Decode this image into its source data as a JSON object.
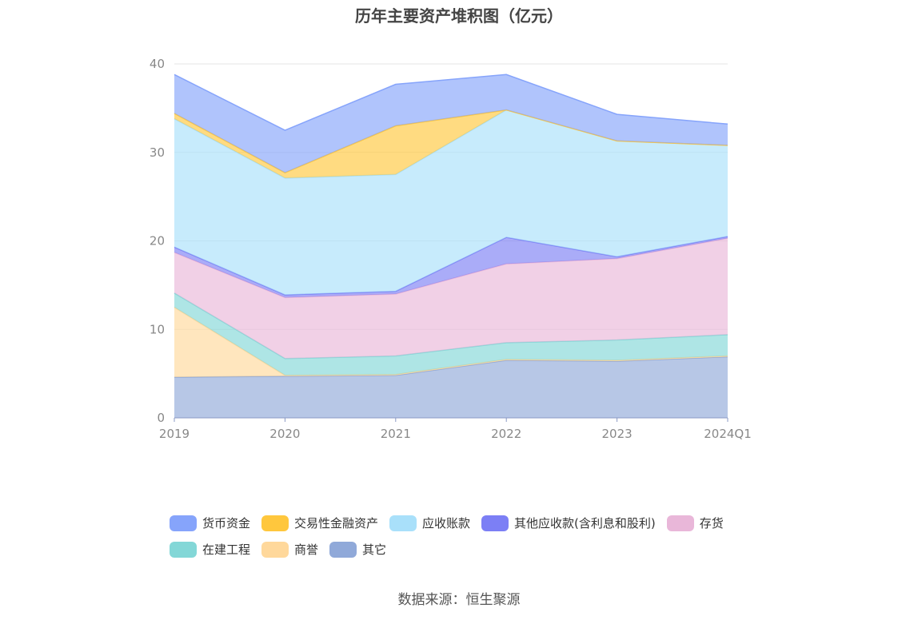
{
  "chart_data": {
    "type": "area",
    "stacked": true,
    "title": "历年主要资产堆积图（亿元）",
    "categories": [
      "2019",
      "2020",
      "2021",
      "2022",
      "2023",
      "2024Q1"
    ],
    "ylim": [
      0,
      40
    ],
    "yticks": [
      "0",
      "10",
      "20",
      "30",
      "40"
    ],
    "grid": true,
    "legend_position": "bottom",
    "series": [
      {
        "name": "其它",
        "color": "#90a9d9",
        "values": [
          4.6,
          4.7,
          4.8,
          6.5,
          6.4,
          6.9
        ]
      },
      {
        "name": "商誉",
        "color": "#ffd89b",
        "values": [
          7.9,
          0.1,
          0.1,
          0.1,
          0.1,
          0.1
        ]
      },
      {
        "name": "在建工程",
        "color": "#83d7d7",
        "values": [
          1.6,
          1.9,
          2.1,
          1.9,
          2.3,
          2.4
        ]
      },
      {
        "name": "存货",
        "color": "#e9b7d9",
        "values": [
          4.6,
          6.9,
          7.0,
          8.9,
          9.2,
          10.9
        ]
      },
      {
        "name": "其他应收款(含利息和股利)",
        "color": "#7c7ff5",
        "values": [
          0.6,
          0.3,
          0.3,
          3.0,
          0.2,
          0.2
        ]
      },
      {
        "name": "应收账款",
        "color": "#a9e0fa",
        "values": [
          14.5,
          13.2,
          13.2,
          14.4,
          13.1,
          10.3
        ]
      },
      {
        "name": "交易性金融资产",
        "color": "#ffc73d",
        "values": [
          0.6,
          0.6,
          5.5,
          0.0,
          0.0,
          0.0
        ]
      },
      {
        "name": "货币资金",
        "color": "#86a4fb",
        "values": [
          4.4,
          4.8,
          4.7,
          4.0,
          3.0,
          2.4
        ]
      }
    ],
    "legend_order": [
      "货币资金",
      "交易性金融资产",
      "应收账款",
      "其他应收款(含利息和股利)",
      "存货",
      "在建工程",
      "商誉",
      "其它"
    ]
  },
  "source": "数据来源：恒生聚源"
}
